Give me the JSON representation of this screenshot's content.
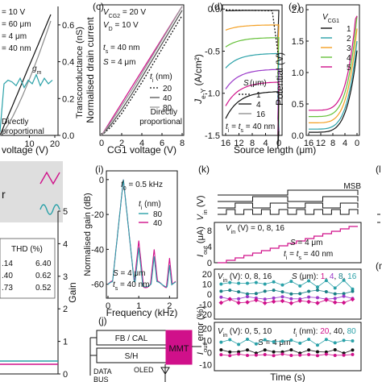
{
  "panel_labels": {
    "c": "(c)",
    "d": "(d)",
    "e": "(e)",
    "i": "(i)",
    "j": "(j)",
    "k": "(k)",
    "l": "(l",
    "m": "(m"
  },
  "colors": {
    "ink": "#111111",
    "teal": "#2aa1a8",
    "magenta": "#d0108a",
    "orange": "#f4a024",
    "green": "#66c13a",
    "purple": "#9a39c9",
    "gray": "#8a8a8a",
    "dark_teal": "#1a7f86"
  },
  "fragments": {
    "a_lines": [
      "= 10 V",
      "= 60 μm",
      "= 4 μm",
      "= 40 nm"
    ],
    "a_gm": "g",
    "a_gm_sub": "m",
    "a_direct": [
      "Directly",
      "proportional"
    ],
    "a_xlabel": "voltage (V)",
    "a_ylabel": "Transconductance (nS)",
    "a_xticks": [
      "10",
      "20"
    ],
    "a_yticks": [
      "0.6",
      "0.4",
      "0.2",
      "0.0"
    ],
    "h_rlabel": "Gain",
    "h_yticks": [
      "5",
      "4",
      "3",
      "2",
      "1",
      "0"
    ],
    "h_table_head": "THD (%)",
    "h_table": [
      {
        "left": ".14",
        "right": "6.40",
        "left_color": "#d0108a",
        "right_color": "#2aa1a8"
      },
      {
        "left": ".40",
        "right": "0.62",
        "left_color": "#d0108a",
        "right_color": "#2aa1a8"
      },
      {
        "left": ".73",
        "right": "0.52",
        "left_color": "#d0108a",
        "right_color": "#2aa1a8"
      }
    ],
    "h_legend_r": "r",
    "j_blocks": {
      "fb": "FB / CAL",
      "sh": "S/H",
      "mmt": "MMT",
      "data": "DATA",
      "bus": "BUS",
      "oled": "OLED"
    },
    "l_frag": "(l",
    "m_frag": "(m"
  },
  "chart_data": [
    {
      "panel": "c",
      "type": "line",
      "annotations": [
        "V",
        "CG2",
        "= 20 V",
        "V",
        "D",
        "= 10 V",
        "t",
        "s",
        "= 40 nm",
        "S",
        "= 4 μm"
      ],
      "xlabel": "CG1 voltage (V)",
      "ylabel": "Normalised drain current",
      "xticks": [
        "0",
        "2",
        "4",
        "6",
        "8"
      ],
      "yticks": [],
      "xlim": [
        0,
        8
      ],
      "ylim": [
        0,
        1
      ],
      "legend_title": "t",
      "legend_title_sub": "i",
      "legend_title_unit": " (nm)",
      "series": [
        {
          "name": "20",
          "x": [
            0,
            1,
            2,
            3,
            4,
            5,
            6,
            7,
            8
          ],
          "y": [
            0,
            0.07,
            0.17,
            0.29,
            0.41,
            0.54,
            0.67,
            0.8,
            0.93
          ],
          "color": "#111111",
          "dash": "2,2"
        },
        {
          "name": "40",
          "x": [
            0,
            1,
            2,
            3,
            4,
            5,
            6,
            7,
            8
          ],
          "y": [
            0,
            0.09,
            0.2,
            0.32,
            0.45,
            0.58,
            0.71,
            0.84,
            0.97
          ],
          "color": "#555555",
          "dash": ""
        },
        {
          "name": "80",
          "x": [
            0,
            1,
            2,
            3,
            4,
            5,
            6,
            7,
            8
          ],
          "y": [
            0,
            0.11,
            0.23,
            0.35,
            0.48,
            0.61,
            0.74,
            0.87,
            1.0
          ],
          "color": "#9a9a9a",
          "dash": ""
        }
      ],
      "reference": {
        "label": [
          "Directly",
          "proportional"
        ],
        "x": [
          0,
          8
        ],
        "y": [
          0,
          1.0
        ],
        "color": "#d0108a"
      }
    },
    {
      "panel": "d",
      "type": "line",
      "ylabel_main": "J",
      "ylabel_sub": "e-Y",
      "ylabel_unit": " (A/cm²)",
      "xlabel": "Source length (μm)",
      "xticks": [
        "16",
        "12",
        "8",
        "4",
        "0"
      ],
      "yticks": [
        "0.0",
        "-0.5",
        "-1.0",
        "-1.5"
      ],
      "xlim": [
        16,
        0
      ],
      "ylim": [
        -1.5,
        0.05
      ],
      "legend_title": "S (μm)",
      "legend": [
        "1",
        "4",
        "16"
      ],
      "annotation": [
        "t",
        "i",
        " = ",
        "t",
        "s",
        " = 40 nm"
      ]
    },
    {
      "panel": "e",
      "type": "line",
      "ylabel": "Potential (V)",
      "xlabel": "",
      "xticks": [
        "16",
        "12",
        "8",
        "4",
        "0"
      ],
      "yticks": [
        "0.0",
        "0.5",
        "1.0",
        "1.5",
        "2.0"
      ],
      "xlim": [
        16,
        0
      ],
      "ylim": [
        0,
        2.0
      ],
      "legend_title": "V",
      "legend_title_sub": "CG1",
      "legend": [
        "1",
        "2",
        "3",
        "4",
        "5"
      ]
    },
    {
      "panel": "i",
      "type": "line",
      "annotation": [
        "f",
        "0",
        " = 0.5 kHz"
      ],
      "xlabel": "Frequency (kHz)",
      "ylabel": "Normalised gain (dB)",
      "xticks": [
        "0",
        "1",
        "2"
      ],
      "yticks": [
        "0",
        "-20",
        "-40",
        "-60"
      ],
      "xlim": [
        0,
        2.2
      ],
      "ylim": [
        -68,
        5
      ],
      "legend_title": "t",
      "legend_title_sub": "i",
      "legend_title_unit": " (nm)",
      "legend": [
        "80",
        "40"
      ],
      "notes": [
        "S = 4 μm",
        "t",
        "s",
        " = 40 nm"
      ],
      "peaks_khz": [
        0.5,
        1.0,
        1.5,
        2.0
      ]
    },
    {
      "panel": "k",
      "type": "line",
      "xlabel": "Time (s)",
      "sub": [
        {
          "ylabel": "V",
          "ylabel_sub": "in",
          "ylabel_unit": " (V)",
          "label": "MSB"
        },
        {
          "ylabel": "I",
          "ylabel_sub": "out",
          "ylabel_unit": " (μA)",
          "yticks": [
            "8",
            "4",
            "0"
          ],
          "notes": [
            "V",
            "in",
            " (V) = 0, 8, 16",
            "S = 4 μm",
            "t",
            "i",
            " = ",
            "t",
            "s",
            " = 40 nm"
          ]
        },
        {
          "ylabel": "I",
          "ylabel_sub": "out",
          "ylabel_unit": " error (%)",
          "yticks": [
            "20",
            "10",
            "0",
            "-10",
            "-20"
          ],
          "labels": [
            {
              "text": "V",
              "sub": "in",
              "rest": " (V): 0, 8, 16"
            },
            {
              "text": "S",
              "rest": " (μm): "
            }
          ],
          "s_values": [
            {
              "v": "1",
              "color": "#d0108a"
            },
            {
              "v": ", ",
              "color": "#111111"
            },
            {
              "v": "4",
              "color": "#9a39c9"
            },
            {
              "v": ", ",
              "color": "#111111"
            },
            {
              "v": "8",
              "color": "#1a7f86"
            },
            {
              "v": ", ",
              "color": "#111111"
            },
            {
              "v": "16",
              "color": "#2aa1a8"
            }
          ]
        },
        {
          "ylabel": "",
          "yticks": [
            "20",
            "10",
            "0",
            "-10"
          ],
          "labels": [
            {
              "text": "V",
              "sub": "in",
              "rest": " (V): 0, 5, 10"
            },
            {
              "text": "t",
              "sub": "i",
              "rest": " (nm): "
            }
          ],
          "t_values": [
            {
              "v": "20",
              "color": "#d0108a"
            },
            {
              "v": ", ",
              "color": "#111111"
            },
            {
              "v": "40",
              "color": "#111111"
            },
            {
              "v": ", ",
              "color": "#111111"
            },
            {
              "v": "80",
              "color": "#2aa1a8"
            }
          ],
          "note": "S = 4 μm"
        }
      ]
    }
  ]
}
